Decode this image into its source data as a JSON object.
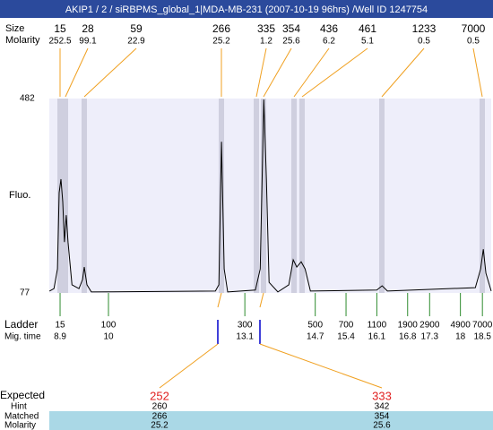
{
  "title": "AKIP1 / 2 / siRBPMS_global_1|MDA-MB-231 (2007-10-19 96hrs) /Well ID 1247754",
  "peaks": {
    "size_label": "Size",
    "molarity_label": "Molarity",
    "size": [
      15,
      28,
      59,
      266,
      335,
      354,
      436,
      461,
      1233,
      7000
    ],
    "molarity": [
      252.5,
      99.1,
      22.9,
      25.2,
      1.2,
      25.6,
      6.2,
      5.1,
      0.5,
      0.5
    ]
  },
  "chart_data": {
    "type": "line",
    "ylabel": "Fluo.",
    "x": [
      8.66,
      8.76,
      8.84,
      8.88,
      8.92,
      8.96,
      9.0,
      9.04,
      9.08,
      9.17,
      9.33,
      9.41,
      9.45,
      9.51,
      9.61,
      12.43,
      12.51,
      12.57,
      12.63,
      12.71,
      13.34,
      13.45,
      13.53,
      13.59,
      13.65,
      13.85,
      14.1,
      14.2,
      14.28,
      14.38,
      14.47,
      14.59,
      16.1,
      16.22,
      16.34,
      18.34,
      18.46,
      18.52,
      18.58,
      18.7
    ],
    "values": [
      81,
      86,
      127,
      286,
      314,
      267,
      183,
      239,
      183,
      94,
      86,
      105,
      131,
      94,
      79,
      81,
      94,
      392,
      127,
      79,
      83,
      127,
      480,
      314,
      99,
      79,
      94,
      146,
      131,
      142,
      127,
      81,
      83,
      92,
      81,
      88,
      127,
      168,
      118,
      81
    ],
    "color": "#000000",
    "xlim": [
      8.655,
      18.7
    ],
    "ylim": [
      77,
      482
    ],
    "yticks": [
      77,
      482
    ]
  },
  "ladder": {
    "label": "Ladder",
    "time_label": "Mig. time",
    "sizes": [
      15,
      100,
      300,
      500,
      700,
      1100,
      1900,
      2900,
      4900,
      7000
    ],
    "times": [
      8.9,
      10,
      13.1,
      14.7,
      15.4,
      16.1,
      16.8,
      17.3,
      18,
      18.5
    ]
  },
  "expected": {
    "label": "Expected",
    "values": [
      252,
      333
    ],
    "hint_label": "Hint",
    "hint": [
      260,
      342
    ],
    "matched_label": "Matched",
    "matched": [
      266,
      354
    ],
    "molarity_label": "Molarity",
    "molarity": [
      25.2,
      25.6
    ]
  }
}
